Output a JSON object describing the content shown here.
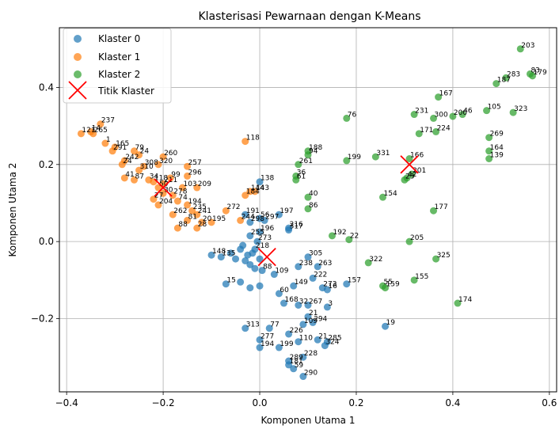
{
  "chart_data": {
    "type": "scatter",
    "title": "Klasterisasi Pewarnaan dengan K-Means",
    "xlabel": "Komponen Utama 1",
    "ylabel": "Komponen Utama 2",
    "xlim": [
      -0.415,
      0.615
    ],
    "ylim": [
      -0.39,
      0.555
    ],
    "x_ticks": [
      -0.4,
      -0.2,
      0.0,
      0.2,
      0.4,
      0.6
    ],
    "x_tick_labels": [
      "−0.4",
      "−0.2",
      "0.0",
      "0.2",
      "0.4",
      "0.6"
    ],
    "y_ticks": [
      -0.2,
      0.0,
      0.2,
      0.4
    ],
    "y_tick_labels": [
      "−0.2",
      "0.0",
      "0.2",
      "0.4"
    ],
    "grid": true,
    "legend_position": "top-left",
    "series": [
      {
        "name": "Klaster 0",
        "color": "#1f77b4",
        "points": [
          {
            "x": 0.0,
            "y": 0.155,
            "label": "138"
          },
          {
            "x": 0.04,
            "y": 0.07,
            "label": "197"
          },
          {
            "x": -0.03,
            "y": 0.07,
            "label": "191"
          },
          {
            "x": 0.0,
            "y": 0.06,
            "label": "56"
          },
          {
            "x": 0.01,
            "y": 0.055,
            "label": "297"
          },
          {
            "x": -0.02,
            "y": 0.05,
            "label": "298"
          },
          {
            "x": 0.06,
            "y": 0.035,
            "label": "216"
          },
          {
            "x": 0.06,
            "y": 0.03,
            "label": "317"
          },
          {
            "x": 0.0,
            "y": 0.025,
            "label": "196"
          },
          {
            "x": -0.02,
            "y": 0.015,
            "label": "255"
          },
          {
            "x": -0.005,
            "y": 0.0,
            "label": "273"
          },
          {
            "x": -0.01,
            "y": -0.02,
            "label": "218"
          },
          {
            "x": -0.1,
            "y": -0.035,
            "label": "148"
          },
          {
            "x": -0.08,
            "y": -0.04,
            "label": "135"
          },
          {
            "x": -0.06,
            "y": -0.03,
            "label": ""
          },
          {
            "x": -0.05,
            "y": -0.045,
            "label": ""
          },
          {
            "x": -0.04,
            "y": -0.02,
            "label": ""
          },
          {
            "x": -0.035,
            "y": -0.01,
            "label": ""
          },
          {
            "x": -0.03,
            "y": -0.05,
            "label": ""
          },
          {
            "x": -0.025,
            "y": -0.035,
            "label": ""
          },
          {
            "x": -0.02,
            "y": -0.06,
            "label": ""
          },
          {
            "x": -0.015,
            "y": -0.03,
            "label": ""
          },
          {
            "x": -0.01,
            "y": -0.07,
            "label": ""
          },
          {
            "x": 0.0,
            "y": -0.045,
            "label": ""
          },
          {
            "x": 0.005,
            "y": -0.075,
            "label": "88"
          },
          {
            "x": 0.1,
            "y": -0.04,
            "label": "305"
          },
          {
            "x": 0.08,
            "y": -0.065,
            "label": "238"
          },
          {
            "x": 0.12,
            "y": -0.065,
            "label": "263"
          },
          {
            "x": 0.11,
            "y": -0.095,
            "label": "222"
          },
          {
            "x": 0.03,
            "y": -0.085,
            "label": "109"
          },
          {
            "x": 0.07,
            "y": -0.115,
            "label": "149"
          },
          {
            "x": 0.13,
            "y": -0.12,
            "label": "273"
          },
          {
            "x": 0.14,
            "y": -0.125,
            "label": "16"
          },
          {
            "x": 0.18,
            "y": -0.11,
            "label": "157"
          },
          {
            "x": -0.07,
            "y": -0.11,
            "label": "15"
          },
          {
            "x": -0.04,
            "y": -0.105,
            "label": ""
          },
          {
            "x": -0.02,
            "y": -0.12,
            "label": ""
          },
          {
            "x": 0.0,
            "y": -0.115,
            "label": ""
          },
          {
            "x": 0.04,
            "y": -0.135,
            "label": "60"
          },
          {
            "x": 0.05,
            "y": -0.16,
            "label": "168"
          },
          {
            "x": 0.08,
            "y": -0.165,
            "label": "32"
          },
          {
            "x": 0.1,
            "y": -0.165,
            "label": "267"
          },
          {
            "x": 0.14,
            "y": -0.17,
            "label": "3"
          },
          {
            "x": 0.1,
            "y": -0.195,
            "label": "21"
          },
          {
            "x": 0.11,
            "y": -0.21,
            "label": "294"
          },
          {
            "x": 0.09,
            "y": -0.215,
            "label": "109"
          },
          {
            "x": 0.26,
            "y": -0.22,
            "label": "19"
          },
          {
            "x": -0.03,
            "y": -0.225,
            "label": "313"
          },
          {
            "x": 0.02,
            "y": -0.225,
            "label": "77"
          },
          {
            "x": 0.06,
            "y": -0.24,
            "label": "226"
          },
          {
            "x": 0.0,
            "y": -0.255,
            "label": "277"
          },
          {
            "x": 0.08,
            "y": -0.26,
            "label": "110"
          },
          {
            "x": 0.12,
            "y": -0.255,
            "label": "21"
          },
          {
            "x": 0.14,
            "y": -0.26,
            "label": "285"
          },
          {
            "x": 0.135,
            "y": -0.27,
            "label": "324"
          },
          {
            "x": 0.04,
            "y": -0.275,
            "label": "199"
          },
          {
            "x": 0.0,
            "y": -0.275,
            "label": "194"
          },
          {
            "x": 0.09,
            "y": -0.3,
            "label": "228"
          },
          {
            "x": 0.06,
            "y": -0.31,
            "label": "289"
          },
          {
            "x": 0.06,
            "y": -0.32,
            "label": "181"
          },
          {
            "x": 0.07,
            "y": -0.33,
            "label": "59"
          },
          {
            "x": 0.09,
            "y": -0.35,
            "label": "290"
          }
        ]
      },
      {
        "name": "Klaster 1",
        "color": "#ff7f0e",
        "points": [
          {
            "x": -0.33,
            "y": 0.305,
            "label": "237"
          },
          {
            "x": -0.35,
            "y": 0.285,
            "label": "14"
          },
          {
            "x": -0.37,
            "y": 0.28,
            "label": "121"
          },
          {
            "x": -0.345,
            "y": 0.28,
            "label": "265"
          },
          {
            "x": -0.32,
            "y": 0.255,
            "label": "1"
          },
          {
            "x": -0.3,
            "y": 0.245,
            "label": "165"
          },
          {
            "x": -0.305,
            "y": 0.235,
            "label": "291"
          },
          {
            "x": -0.26,
            "y": 0.235,
            "label": "79"
          },
          {
            "x": -0.25,
            "y": 0.225,
            "label": "24"
          },
          {
            "x": -0.28,
            "y": 0.21,
            "label": "242"
          },
          {
            "x": -0.285,
            "y": 0.2,
            "label": "24"
          },
          {
            "x": -0.2,
            "y": 0.22,
            "label": "260"
          },
          {
            "x": -0.21,
            "y": 0.2,
            "label": "320"
          },
          {
            "x": -0.24,
            "y": 0.195,
            "label": "308"
          },
          {
            "x": -0.25,
            "y": 0.185,
            "label": "310"
          },
          {
            "x": -0.15,
            "y": 0.195,
            "label": "257"
          },
          {
            "x": -0.15,
            "y": 0.17,
            "label": "296"
          },
          {
            "x": -0.28,
            "y": 0.165,
            "label": "41"
          },
          {
            "x": -0.26,
            "y": 0.16,
            "label": "87"
          },
          {
            "x": -0.23,
            "y": 0.16,
            "label": "34"
          },
          {
            "x": -0.22,
            "y": 0.155,
            "label": "118"
          },
          {
            "x": -0.185,
            "y": 0.165,
            "label": "99"
          },
          {
            "x": -0.2,
            "y": 0.15,
            "label": "211"
          },
          {
            "x": -0.21,
            "y": 0.14,
            "label": "50"
          },
          {
            "x": -0.16,
            "y": 0.14,
            "label": "103"
          },
          {
            "x": -0.13,
            "y": 0.14,
            "label": "209"
          },
          {
            "x": -0.2,
            "y": 0.125,
            "label": "30"
          },
          {
            "x": -0.18,
            "y": 0.12,
            "label": "278"
          },
          {
            "x": -0.22,
            "y": 0.11,
            "label": "27"
          },
          {
            "x": -0.17,
            "y": 0.105,
            "label": "74"
          },
          {
            "x": -0.21,
            "y": 0.095,
            "label": "204"
          },
          {
            "x": -0.15,
            "y": 0.095,
            "label": "194"
          },
          {
            "x": -0.14,
            "y": 0.08,
            "label": "235"
          },
          {
            "x": -0.18,
            "y": 0.07,
            "label": "262"
          },
          {
            "x": -0.13,
            "y": 0.07,
            "label": "241"
          },
          {
            "x": -0.07,
            "y": 0.08,
            "label": "272"
          },
          {
            "x": -0.15,
            "y": 0.055,
            "label": "81"
          },
          {
            "x": -0.12,
            "y": 0.05,
            "label": "20"
          },
          {
            "x": -0.1,
            "y": 0.05,
            "label": "195"
          },
          {
            "x": -0.04,
            "y": 0.055,
            "label": "244"
          },
          {
            "x": -0.17,
            "y": 0.035,
            "label": "88"
          },
          {
            "x": -0.13,
            "y": 0.035,
            "label": "28"
          },
          {
            "x": -0.03,
            "y": 0.26,
            "label": "118"
          },
          {
            "x": -0.02,
            "y": 0.13,
            "label": "144"
          },
          {
            "x": -0.03,
            "y": 0.12,
            "label": "184"
          },
          {
            "x": -0.01,
            "y": 0.13,
            "label": "143"
          }
        ]
      },
      {
        "name": "Klaster 2",
        "color": "#2ca02c",
        "points": [
          {
            "x": 0.54,
            "y": 0.5,
            "label": "203"
          },
          {
            "x": 0.565,
            "y": 0.43,
            "label": "179"
          },
          {
            "x": 0.56,
            "y": 0.435,
            "label": "83"
          },
          {
            "x": 0.51,
            "y": 0.425,
            "label": "283"
          },
          {
            "x": 0.49,
            "y": 0.41,
            "label": "187"
          },
          {
            "x": 0.37,
            "y": 0.375,
            "label": "167"
          },
          {
            "x": 0.47,
            "y": 0.34,
            "label": "105"
          },
          {
            "x": 0.42,
            "y": 0.33,
            "label": "46"
          },
          {
            "x": 0.4,
            "y": 0.325,
            "label": "200"
          },
          {
            "x": 0.525,
            "y": 0.335,
            "label": "323"
          },
          {
            "x": 0.32,
            "y": 0.33,
            "label": "231"
          },
          {
            "x": 0.36,
            "y": 0.32,
            "label": "300"
          },
          {
            "x": 0.33,
            "y": 0.28,
            "label": "171"
          },
          {
            "x": 0.365,
            "y": 0.285,
            "label": "224"
          },
          {
            "x": 0.475,
            "y": 0.27,
            "label": "269"
          },
          {
            "x": 0.475,
            "y": 0.235,
            "label": "164"
          },
          {
            "x": 0.475,
            "y": 0.215,
            "label": "139"
          },
          {
            "x": 0.18,
            "y": 0.32,
            "label": "76"
          },
          {
            "x": 0.1,
            "y": 0.235,
            "label": "188"
          },
          {
            "x": 0.1,
            "y": 0.225,
            "label": "94"
          },
          {
            "x": 0.18,
            "y": 0.21,
            "label": "199"
          },
          {
            "x": 0.24,
            "y": 0.22,
            "label": "331"
          },
          {
            "x": 0.31,
            "y": 0.215,
            "label": "166"
          },
          {
            "x": 0.08,
            "y": 0.2,
            "label": "261"
          },
          {
            "x": 0.075,
            "y": 0.17,
            "label": "36"
          },
          {
            "x": 0.075,
            "y": 0.16,
            "label": "61"
          },
          {
            "x": 0.315,
            "y": 0.175,
            "label": "201"
          },
          {
            "x": 0.3,
            "y": 0.16,
            "label": "23"
          },
          {
            "x": 0.305,
            "y": 0.165,
            "label": "42"
          },
          {
            "x": 0.1,
            "y": 0.115,
            "label": "40"
          },
          {
            "x": 0.1,
            "y": 0.085,
            "label": "86"
          },
          {
            "x": 0.255,
            "y": 0.115,
            "label": "154"
          },
          {
            "x": 0.36,
            "y": 0.08,
            "label": "177"
          },
          {
            "x": 0.15,
            "y": 0.015,
            "label": "192"
          },
          {
            "x": 0.185,
            "y": 0.005,
            "label": "22"
          },
          {
            "x": 0.31,
            "y": 0.0,
            "label": "205"
          },
          {
            "x": 0.365,
            "y": -0.045,
            "label": "325"
          },
          {
            "x": 0.225,
            "y": -0.055,
            "label": "322"
          },
          {
            "x": 0.255,
            "y": -0.115,
            "label": "55"
          },
          {
            "x": 0.26,
            "y": -0.12,
            "label": "159"
          },
          {
            "x": 0.32,
            "y": -0.1,
            "label": "155"
          },
          {
            "x": 0.41,
            "y": -0.16,
            "label": "174"
          }
        ]
      }
    ],
    "centroids": {
      "name": "Titik Klaster",
      "color": "#ff0000",
      "points": [
        {
          "x": 0.015,
          "y": -0.04
        },
        {
          "x": -0.2,
          "y": 0.14
        },
        {
          "x": 0.31,
          "y": 0.2
        }
      ]
    }
  }
}
